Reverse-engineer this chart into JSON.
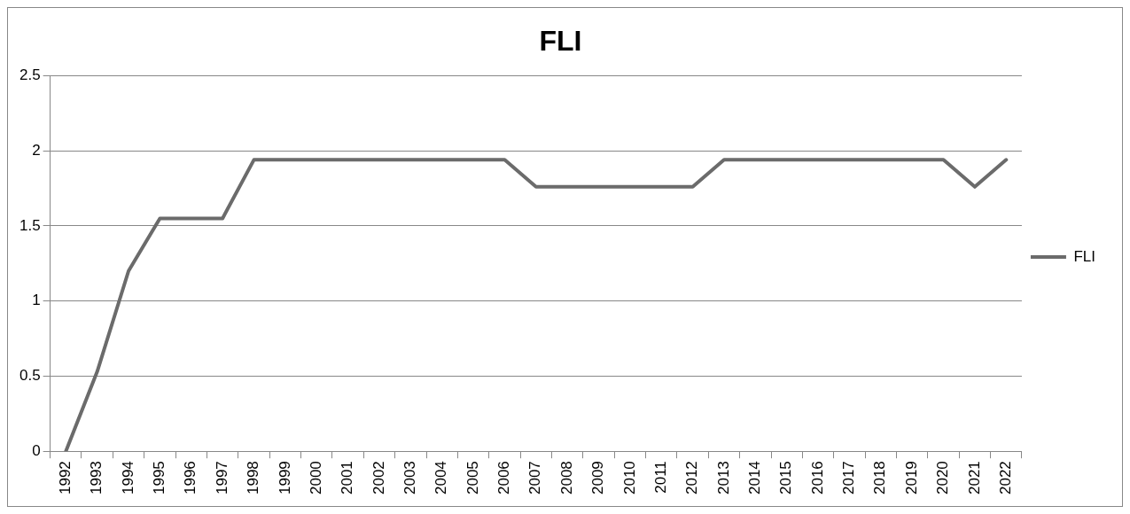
{
  "chart_data": {
    "type": "line",
    "title": "FLI",
    "categories": [
      "1992",
      "1993",
      "1994",
      "1995",
      "1996",
      "1997",
      "1998",
      "1999",
      "2000",
      "2001",
      "2002",
      "2003",
      "2004",
      "2005",
      "2006",
      "2007",
      "2008",
      "2009",
      "2010",
      "2011",
      "2012",
      "2013",
      "2014",
      "2015",
      "2016",
      "2017",
      "2018",
      "2019",
      "2020",
      "2021",
      "2022"
    ],
    "series": [
      {
        "name": "FLI",
        "color": "#6b6b6b",
        "values": [
          0,
          0.53,
          1.2,
          1.55,
          1.55,
          1.55,
          1.94,
          1.94,
          1.94,
          1.94,
          1.94,
          1.94,
          1.94,
          1.94,
          1.94,
          1.76,
          1.76,
          1.76,
          1.76,
          1.76,
          1.76,
          1.94,
          1.94,
          1.94,
          1.94,
          1.94,
          1.94,
          1.94,
          1.94,
          1.76,
          1.94
        ]
      }
    ],
    "ylim": [
      0,
      2.5
    ],
    "yticks": [
      0,
      0.5,
      1,
      1.5,
      2,
      2.5
    ],
    "grid": "y",
    "legend": "right",
    "marker": "none",
    "line_style": "solid"
  }
}
